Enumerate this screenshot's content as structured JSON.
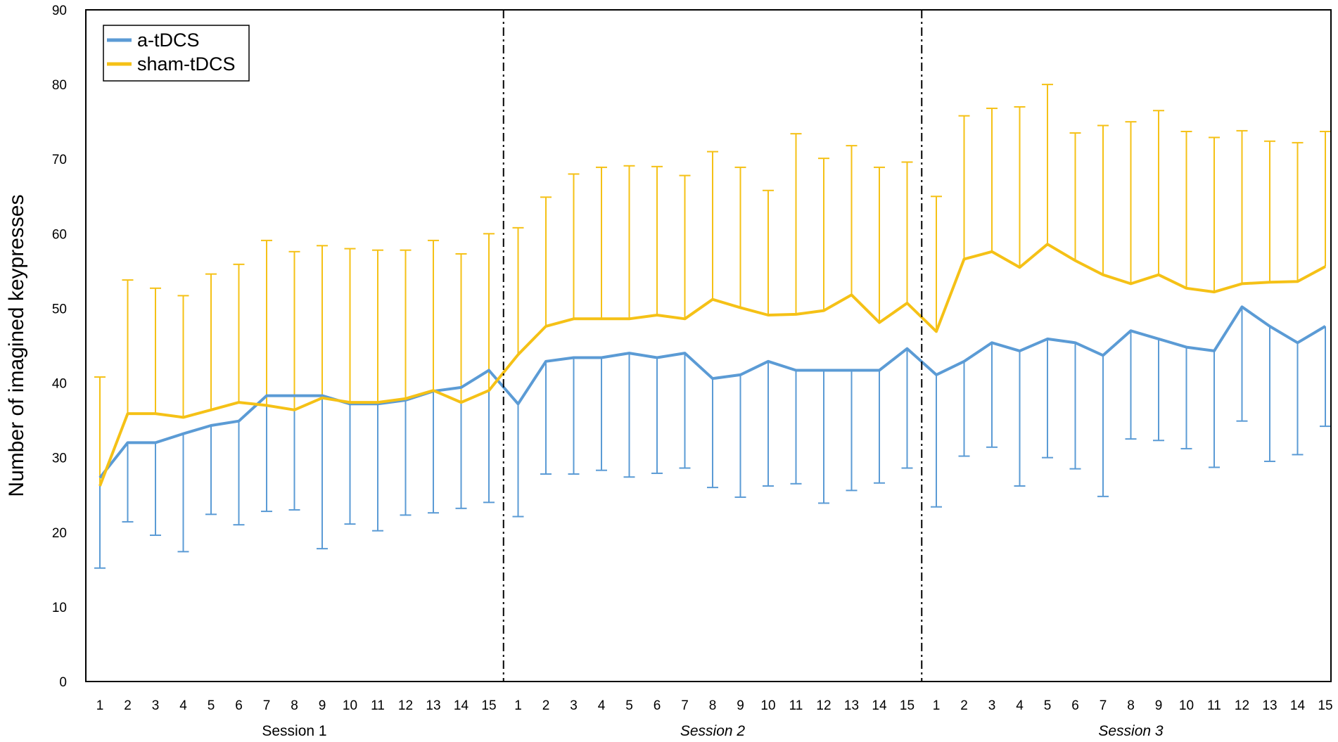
{
  "chart_data": {
    "type": "line",
    "title": "",
    "ylabel": "Number of imagined keypresses",
    "ylim": [
      0,
      90
    ],
    "yticks": [
      0,
      10,
      20,
      30,
      40,
      50,
      60,
      70,
      80,
      90
    ],
    "grid": false,
    "legend_position": "top-left",
    "sessions": [
      {
        "label": "Session 1",
        "italic": false
      },
      {
        "label": "Session 2",
        "italic": true
      },
      {
        "label": "Session 3",
        "italic": true
      }
    ],
    "categories": [
      "1",
      "2",
      "3",
      "4",
      "5",
      "6",
      "7",
      "8",
      "9",
      "10",
      "11",
      "12",
      "13",
      "14",
      "15",
      "1",
      "2",
      "3",
      "4",
      "5",
      "6",
      "7",
      "8",
      "9",
      "10",
      "11",
      "12",
      "13",
      "14",
      "15",
      "1",
      "2",
      "3",
      "4",
      "5",
      "6",
      "7",
      "8",
      "9",
      "10",
      "11",
      "12",
      "13",
      "14",
      "15"
    ],
    "series": [
      {
        "name": "a-tDCS",
        "color": "#5B9BD5",
        "error_direction": "down",
        "values": [
          27.3,
          32.0,
          32.0,
          33.2,
          34.3,
          34.9,
          38.3,
          38.3,
          38.3,
          37.2,
          37.2,
          37.7,
          38.9,
          39.4,
          41.7,
          37.2,
          42.9,
          43.4,
          43.4,
          44.0,
          43.4,
          44.0,
          40.6,
          41.1,
          42.9,
          41.7,
          41.7,
          41.7,
          41.7,
          44.6,
          41.1,
          42.9,
          45.4,
          44.3,
          45.9,
          45.4,
          43.7,
          47.0,
          45.9,
          44.8,
          44.3,
          50.2,
          47.6,
          45.4,
          47.6
        ],
        "error_ends": [
          15.2,
          21.4,
          19.6,
          17.4,
          22.4,
          21.0,
          22.8,
          23.0,
          17.8,
          21.1,
          20.2,
          22.3,
          22.6,
          23.2,
          24.0,
          22.1,
          27.8,
          27.8,
          28.3,
          27.4,
          27.9,
          28.6,
          26.0,
          24.7,
          26.2,
          26.5,
          23.9,
          25.6,
          26.6,
          28.6,
          23.4,
          30.2,
          31.4,
          26.2,
          30.0,
          28.5,
          24.8,
          32.5,
          32.3,
          31.2,
          28.7,
          34.9,
          29.5,
          30.4,
          34.2
        ]
      },
      {
        "name": "sham-tDCS",
        "color": "#F5C116",
        "error_direction": "up",
        "values": [
          26.2,
          35.9,
          35.9,
          35.4,
          36.4,
          37.4,
          37.0,
          36.4,
          38.0,
          37.4,
          37.4,
          37.9,
          39.0,
          37.4,
          39.0,
          43.8,
          47.6,
          48.6,
          48.6,
          48.6,
          49.1,
          48.6,
          51.2,
          50.1,
          49.1,
          49.2,
          49.7,
          51.8,
          48.1,
          50.7,
          46.9,
          56.6,
          57.6,
          55.5,
          58.6,
          56.4,
          54.5,
          53.3,
          54.5,
          52.7,
          52.2,
          53.3,
          53.5,
          53.6,
          55.6
        ],
        "error_ends": [
          40.8,
          53.8,
          52.7,
          51.7,
          54.6,
          55.9,
          59.1,
          57.6,
          58.4,
          58.0,
          57.8,
          57.8,
          59.1,
          57.3,
          60.0,
          60.8,
          64.9,
          68.0,
          68.9,
          69.1,
          69.0,
          67.8,
          71.0,
          68.9,
          65.8,
          73.4,
          70.1,
          71.8,
          68.9,
          69.6,
          65.0,
          75.8,
          76.8,
          77.0,
          80.0,
          73.5,
          74.5,
          75.0,
          76.5,
          73.7,
          72.9,
          73.8,
          72.4,
          72.2,
          73.7
        ]
      }
    ]
  }
}
